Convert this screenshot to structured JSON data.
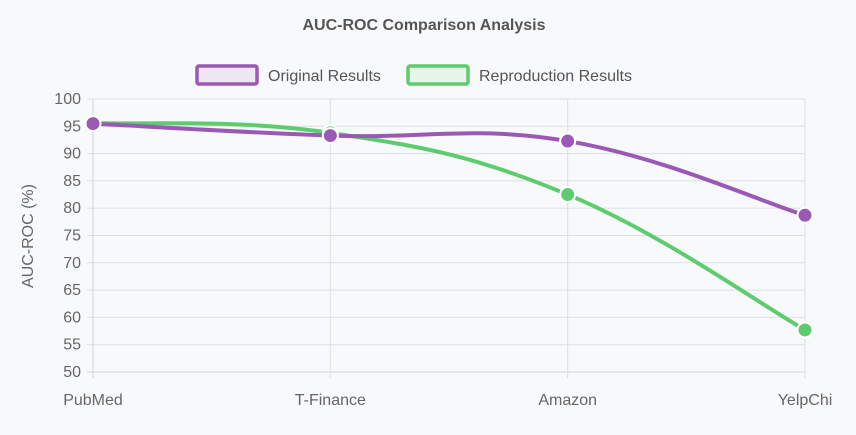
{
  "chart_data": {
    "type": "line",
    "title": "AUC-ROC Comparison Analysis",
    "ylabel": "AUC-ROC (%)",
    "xlabel": "",
    "categories": [
      "PubMed",
      "T-Finance",
      "Amazon",
      "YelpChi"
    ],
    "ylim": [
      50,
      100
    ],
    "yticks": [
      50,
      55,
      60,
      65,
      70,
      75,
      80,
      85,
      90,
      95,
      100
    ],
    "grid": true,
    "legend_position": "top",
    "series": [
      {
        "name": "Original Results",
        "values": [
          95.5,
          93.3,
          92.3,
          78.7
        ],
        "color": "#9b59b6",
        "fill": "#efe6f4"
      },
      {
        "name": "Reproduction Results",
        "values": [
          95.6,
          93.8,
          82.5,
          57.7
        ],
        "color": "#5dcc6e",
        "fill": "#e8f6ea"
      }
    ]
  }
}
